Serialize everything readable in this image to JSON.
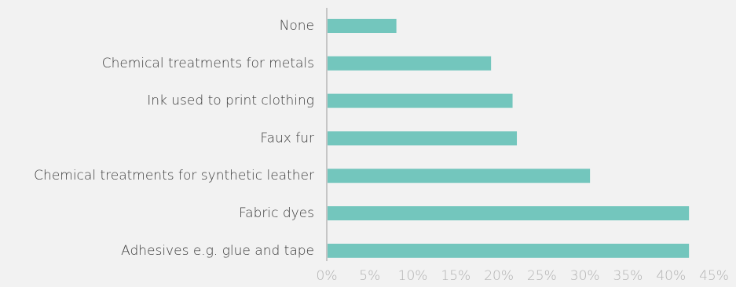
{
  "chart_data": {
    "type": "bar",
    "orientation": "horizontal",
    "categories": [
      "None",
      "Chemical treatments for metals",
      "Ink used to print clothing",
      "Faux fur",
      "Chemical treatments for synthetic leather",
      "Fabric dyes",
      "Adhesives e.g. glue and tape"
    ],
    "values": [
      8,
      19,
      21.5,
      22,
      30.5,
      42,
      42
    ],
    "x_ticks": [
      "0%",
      "5%",
      "10%",
      "15%",
      "20%",
      "25%",
      "30%",
      "35%",
      "40%",
      "45%"
    ],
    "xlim": [
      0,
      45
    ],
    "title": "",
    "xlabel": "",
    "ylabel": "",
    "grid": false,
    "legend": "none"
  },
  "colors": {
    "bar": "#73c6bd",
    "axis": "#9a9a9a",
    "background": "#f2f2f2"
  }
}
